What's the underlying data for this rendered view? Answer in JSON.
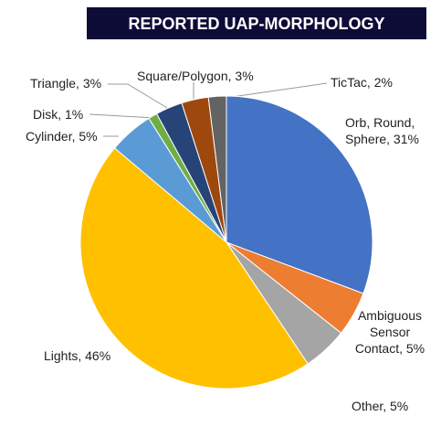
{
  "chart_data": {
    "type": "pie",
    "title": "REPORTED UAP-MORPHOLOGY",
    "labels": [
      "Orb, Round,\nSphere, 31%",
      "Ambiguous\nSensor\nContact, 5%",
      "Other, 5%",
      "Lights, 46%",
      "Cylinder, 5%",
      "Disk, 1%",
      "Triangle, 3%",
      "Square/Polygon, 3%",
      "TicTac, 2%"
    ],
    "values": [
      31,
      5,
      5,
      46,
      5,
      1,
      3,
      3,
      2
    ],
    "colors": [
      "#4472c4",
      "#ed7d31",
      "#a5a5a5",
      "#ffc000",
      "#5b9bd5",
      "#70ad47",
      "#264478",
      "#9e480e",
      "#636363"
    ]
  }
}
